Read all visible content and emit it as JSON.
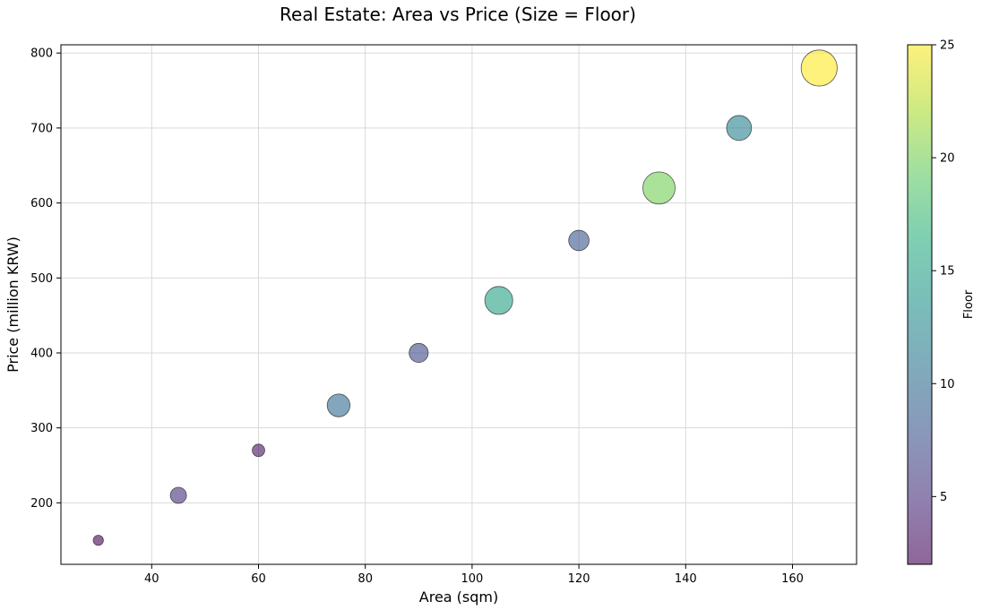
{
  "chart_data": {
    "type": "scatter",
    "title": "Real Estate: Area vs Price (Size = Floor)",
    "xlabel": "Area (sqm)",
    "ylabel": "Price (million KRW)",
    "xlim": [
      23,
      172
    ],
    "ylim": [
      118,
      811
    ],
    "xticks": [
      40,
      60,
      80,
      100,
      120,
      140,
      160
    ],
    "yticks": [
      200,
      300,
      400,
      500,
      600,
      700,
      800
    ],
    "grid": true,
    "size_encodes": "floor",
    "colorbar": {
      "label": "Floor",
      "range": [
        2,
        25
      ],
      "ticks": [
        5,
        10,
        15,
        20,
        25
      ],
      "colormap": "viridis",
      "alpha": 0.6
    },
    "points": [
      {
        "area": 30,
        "price": 150,
        "floor": 2
      },
      {
        "area": 45,
        "price": 210,
        "floor": 5
      },
      {
        "area": 60,
        "price": 270,
        "floor": 3
      },
      {
        "area": 75,
        "price": 330,
        "floor": 10
      },
      {
        "area": 90,
        "price": 400,
        "floor": 7
      },
      {
        "area": 105,
        "price": 470,
        "floor": 15
      },
      {
        "area": 120,
        "price": 550,
        "floor": 8
      },
      {
        "area": 135,
        "price": 620,
        "floor": 20
      },
      {
        "area": 150,
        "price": 700,
        "floor": 12
      },
      {
        "area": 165,
        "price": 780,
        "floor": 25
      }
    ]
  }
}
